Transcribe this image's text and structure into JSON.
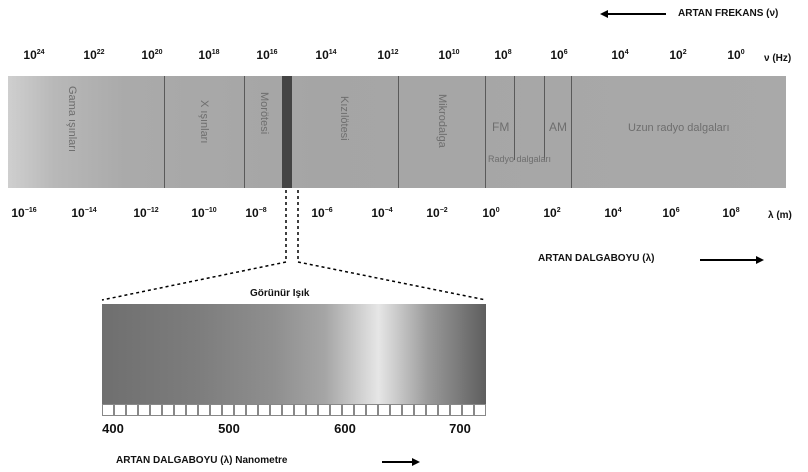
{
  "frequency": {
    "label": "ARTAN FREKANS",
    "symbol": "(ν)",
    "unit": "ν (Hz)",
    "ticks": [
      {
        "b": "10",
        "e": "24"
      },
      {
        "b": "10",
        "e": "22"
      },
      {
        "b": "10",
        "e": "20"
      },
      {
        "b": "10",
        "e": "18"
      },
      {
        "b": "10",
        "e": "16"
      },
      {
        "b": "10",
        "e": "14"
      },
      {
        "b": "10",
        "e": "12"
      },
      {
        "b": "10",
        "e": "10"
      },
      {
        "b": "10",
        "e": "8"
      },
      {
        "b": "10",
        "e": "6"
      },
      {
        "b": "10",
        "e": "4"
      },
      {
        "b": "10",
        "e": "2"
      },
      {
        "b": "10",
        "e": "0"
      }
    ]
  },
  "wavelength": {
    "label": "ARTAN DALGABOYU (λ)",
    "unit": "λ (m)",
    "ticks": [
      {
        "b": "10",
        "e": "−16"
      },
      {
        "b": "10",
        "e": "−14"
      },
      {
        "b": "10",
        "e": "−12"
      },
      {
        "b": "10",
        "e": "−10"
      },
      {
        "b": "10",
        "e": "−8"
      },
      {
        "b": "10",
        "e": "−6"
      },
      {
        "b": "10",
        "e": "−4"
      },
      {
        "b": "10",
        "e": "−2"
      },
      {
        "b": "10",
        "e": "0"
      },
      {
        "b": "10",
        "e": "2"
      },
      {
        "b": "10",
        "e": "4"
      },
      {
        "b": "10",
        "e": "6"
      },
      {
        "b": "10",
        "e": "8"
      }
    ]
  },
  "regions": {
    "gamma": "Gama ışınları",
    "xray": "X ışınları",
    "uv": "Morötesi",
    "ir": "Kızılötesi",
    "micro": "Mikrodalga",
    "fm": "FM",
    "am": "AM",
    "radio_sub": "Radyo dalgaları",
    "long_radio": "Uzun radyo dalgaları"
  },
  "visible": {
    "title": "Görünür Işık",
    "nm_ticks": [
      "400",
      "500",
      "600",
      "700"
    ],
    "axis_label": "ARTAN DALGABOYU (λ) Nanometre"
  },
  "colors": {
    "band": "#a8a8a8",
    "divider": "#5a5a5a",
    "text": "#111111"
  }
}
